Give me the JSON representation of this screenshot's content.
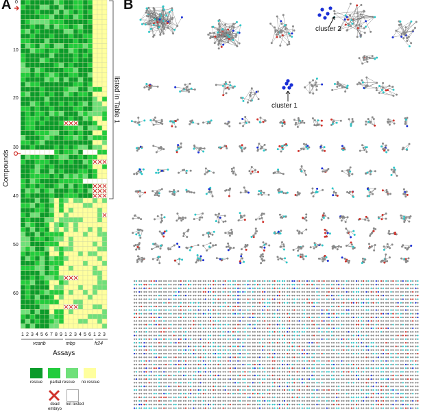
{
  "panels": {
    "a": "A",
    "b": "B"
  },
  "heatmap": {
    "y_label": "Compounds",
    "x_label": "Assays",
    "y_ticks": [
      "0",
      "10",
      "20",
      "30",
      "40",
      "50",
      "60"
    ],
    "x_ticks": [
      "1",
      "2",
      "3",
      "4",
      "5",
      "6",
      "7",
      "8",
      "9",
      "1",
      "2",
      "3",
      "4",
      "5",
      "6",
      "1",
      "2",
      "3"
    ],
    "groups": [
      "vcanb",
      "mbp",
      "fr24"
    ],
    "bracket_label": "listed in Table 1",
    "colors": {
      "rescue": "#0b9b2a",
      "partial": "#22cc3d",
      "weak": "#6fe07a",
      "none": "#ffff9e",
      "grid": "#cfd8a0"
    }
  },
  "legend": {
    "items": [
      "rescue",
      "partial rescue",
      "no rescue"
    ],
    "dead": "dead embryo",
    "not_tested": "not tested"
  },
  "network": {
    "cluster1": "cluster 1",
    "cluster2": "cluster 2",
    "colors": {
      "gray": "#8a8a8a",
      "cyan": "#2ec7c9",
      "blue": "#1a2fd6",
      "red": "#d0332c",
      "edge": "#555555"
    }
  }
}
